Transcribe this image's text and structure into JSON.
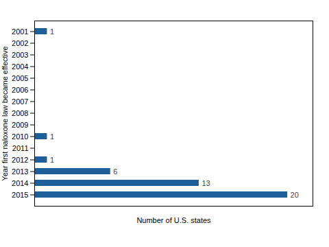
{
  "chart_data": {
    "type": "bar",
    "orientation": "horizontal",
    "categories": [
      "2001",
      "2002",
      "2003",
      "2004",
      "2005",
      "2006",
      "2007",
      "2008",
      "2009",
      "2010",
      "2011",
      "2012",
      "2013",
      "2014",
      "2015"
    ],
    "values": [
      1,
      0,
      0,
      0,
      0,
      0,
      0,
      0,
      0,
      1,
      0,
      1,
      6,
      13,
      20
    ],
    "value_labels": [
      "1",
      null,
      null,
      null,
      null,
      null,
      null,
      null,
      null,
      "1",
      null,
      "1",
      "6",
      "13",
      "20"
    ],
    "data_labels": true,
    "color": "#1f5f99",
    "xlabel": "Number of U.S. states",
    "ylabel": "Year first naloxone law became effective",
    "xlim": [
      0,
      22
    ],
    "grid": false,
    "tick_labels": "y"
  }
}
